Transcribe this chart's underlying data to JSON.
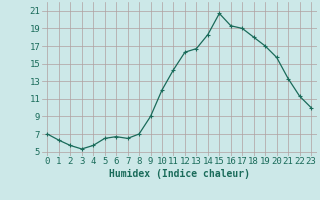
{
  "x": [
    0,
    1,
    2,
    3,
    4,
    5,
    6,
    7,
    8,
    9,
    10,
    11,
    12,
    13,
    14,
    15,
    16,
    17,
    18,
    19,
    20,
    21,
    22,
    23
  ],
  "y": [
    7.0,
    6.3,
    5.7,
    5.3,
    5.7,
    6.5,
    6.7,
    6.5,
    7.0,
    9.0,
    12.0,
    14.3,
    16.3,
    16.7,
    18.3,
    20.7,
    19.3,
    19.0,
    18.0,
    17.0,
    15.7,
    13.3,
    11.3,
    10.0
  ],
  "xlabel": "Humidex (Indice chaleur)",
  "xlim": [
    -0.5,
    23.5
  ],
  "ylim": [
    4.5,
    22.0
  ],
  "yticks": [
    5,
    7,
    9,
    11,
    13,
    15,
    17,
    19,
    21
  ],
  "xticks": [
    0,
    1,
    2,
    3,
    4,
    5,
    6,
    7,
    8,
    9,
    10,
    11,
    12,
    13,
    14,
    15,
    16,
    17,
    18,
    19,
    20,
    21,
    22,
    23
  ],
  "line_color": "#1a6b5a",
  "marker": "+",
  "marker_size": 3,
  "marker_linewidth": 0.8,
  "bg_color": "#cce8e8",
  "grid_color": "#b0a0a0",
  "tick_color": "#1a6b5a",
  "xlabel_color": "#1a6b5a",
  "xlabel_fontsize": 7,
  "tick_fontsize": 6.5,
  "linewidth": 0.9
}
